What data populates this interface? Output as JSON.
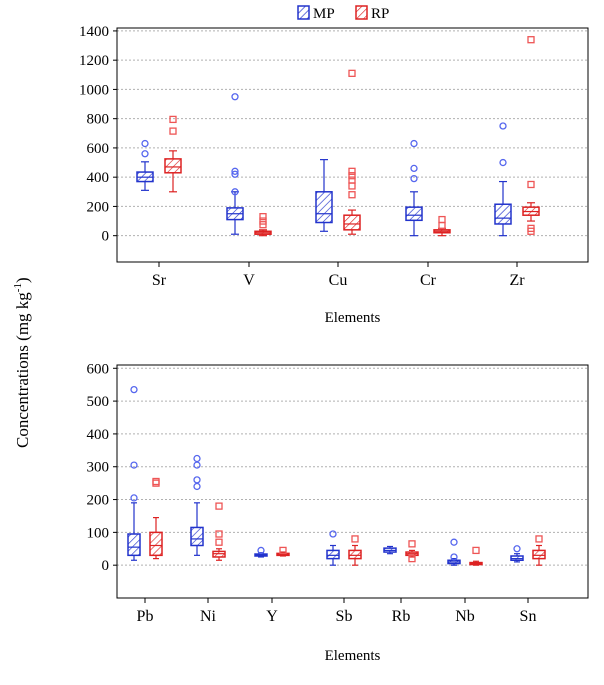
{
  "legend": {
    "items": [
      {
        "label": "MP",
        "color": "#2233cc"
      },
      {
        "label": "RP",
        "color": "#dd2222"
      }
    ]
  },
  "y_axis_label": "Concentrations (mg kg",
  "y_axis_label_sup": "-1",
  "y_axis_label_close": ")",
  "colors": {
    "MP": "#2233cc",
    "RP": "#dd2222",
    "MP_outlier": "#5566ee",
    "RP_outlier": "#ee5555",
    "grid": "#b0b0b0"
  },
  "chart_data": [
    {
      "type": "box",
      "xlabel": "Elements",
      "ylim": [
        -180,
        1420
      ],
      "yticks": [
        0,
        200,
        400,
        600,
        800,
        1000,
        1200,
        1400
      ],
      "grid": true,
      "legend_position": "top-center",
      "categories": [
        "Sr",
        "V",
        "Cu",
        "Cr",
        "Zr"
      ],
      "series": [
        {
          "name": "MP",
          "boxes": [
            {
              "whisker_low": 310,
              "q1": 370,
              "median": 400,
              "q3": 435,
              "whisker_high": 505,
              "outliers": [
                560,
                630
              ]
            },
            {
              "whisker_low": 10,
              "q1": 110,
              "median": 150,
              "q3": 190,
              "whisker_high": 300,
              "outliers": [
                300,
                420,
                440,
                950
              ]
            },
            {
              "whisker_low": 30,
              "q1": 90,
              "median": 150,
              "q3": 300,
              "whisker_high": 520,
              "outliers": []
            },
            {
              "whisker_low": 0,
              "q1": 105,
              "median": 140,
              "q3": 195,
              "whisker_high": 300,
              "outliers": [
                390,
                460,
                630
              ]
            },
            {
              "whisker_low": 0,
              "q1": 80,
              "median": 120,
              "q3": 215,
              "whisker_high": 370,
              "outliers": [
                500,
                750
              ]
            }
          ]
        },
        {
          "name": "RP",
          "boxes": [
            {
              "whisker_low": 300,
              "q1": 430,
              "median": 470,
              "q3": 525,
              "whisker_high": 580,
              "outliers": [
                715,
                795
              ]
            },
            {
              "whisker_low": 0,
              "q1": 10,
              "median": 20,
              "q3": 30,
              "whisker_high": 40,
              "outliers": [
                75,
                100,
                130
              ]
            },
            {
              "whisker_low": 10,
              "q1": 40,
              "median": 80,
              "q3": 140,
              "whisker_high": 175,
              "outliers": [
                280,
                340,
                380,
                410,
                440,
                1110
              ]
            },
            {
              "whisker_low": 0,
              "q1": 20,
              "median": 30,
              "q3": 40,
              "whisker_high": 50,
              "outliers": [
                70,
                110
              ]
            },
            {
              "whisker_low": 100,
              "q1": 140,
              "median": 165,
              "q3": 195,
              "whisker_high": 225,
              "outliers": [
                30,
                50,
                350,
                1340
              ]
            }
          ]
        }
      ]
    },
    {
      "type": "box",
      "xlabel": "Elements",
      "ylim": [
        -100,
        610
      ],
      "yticks": [
        0,
        100,
        200,
        300,
        400,
        500,
        600
      ],
      "grid": true,
      "categories": [
        "Pb",
        "Ni",
        "Y",
        "Sb",
        "Rb",
        "Nb",
        "Sn"
      ],
      "series": [
        {
          "name": "MP",
          "boxes": [
            {
              "whisker_low": 15,
              "q1": 30,
              "median": 55,
              "q3": 95,
              "whisker_high": 190,
              "outliers": [
                205,
                305,
                535
              ]
            },
            {
              "whisker_low": 30,
              "q1": 60,
              "median": 80,
              "q3": 115,
              "whisker_high": 190,
              "outliers": [
                240,
                260,
                305,
                325
              ]
            },
            {
              "whisker_low": 25,
              "q1": 29,
              "median": 31,
              "q3": 34,
              "whisker_high": 38,
              "outliers": [
                45
              ]
            },
            {
              "whisker_low": 0,
              "q1": 20,
              "median": 30,
              "q3": 45,
              "whisker_high": 60,
              "outliers": [
                95
              ]
            },
            {
              "whisker_low": 35,
              "q1": 40,
              "median": 45,
              "q3": 52,
              "whisker_high": 57,
              "outliers": []
            },
            {
              "whisker_low": 0,
              "q1": 5,
              "median": 10,
              "q3": 15,
              "whisker_high": 20,
              "outliers": [
                25,
                70
              ]
            },
            {
              "whisker_low": 10,
              "q1": 15,
              "median": 20,
              "q3": 28,
              "whisker_high": 35,
              "outliers": [
                50
              ]
            }
          ]
        },
        {
          "name": "RP",
          "boxes": [
            {
              "whisker_low": 20,
              "q1": 30,
              "median": 60,
              "q3": 100,
              "whisker_high": 145,
              "outliers": [
                250,
                255
              ]
            },
            {
              "whisker_low": 15,
              "q1": 25,
              "median": 35,
              "q3": 42,
              "whisker_high": 50,
              "outliers": [
                70,
                95,
                180
              ]
            },
            {
              "whisker_low": 28,
              "q1": 30,
              "median": 33,
              "q3": 36,
              "whisker_high": 40,
              "outliers": [
                45
              ]
            },
            {
              "whisker_low": 0,
              "q1": 20,
              "median": 30,
              "q3": 45,
              "whisker_high": 60,
              "outliers": [
                80
              ]
            },
            {
              "whisker_low": 25,
              "q1": 30,
              "median": 35,
              "q3": 40,
              "whisker_high": 45,
              "outliers": [
                20,
                65
              ]
            },
            {
              "whisker_low": 0,
              "q1": 2,
              "median": 5,
              "q3": 8,
              "whisker_high": 12,
              "outliers": [
                45
              ]
            },
            {
              "whisker_low": 0,
              "q1": 20,
              "median": 30,
              "q3": 45,
              "whisker_high": 60,
              "outliers": [
                80
              ]
            }
          ]
        }
      ]
    }
  ]
}
